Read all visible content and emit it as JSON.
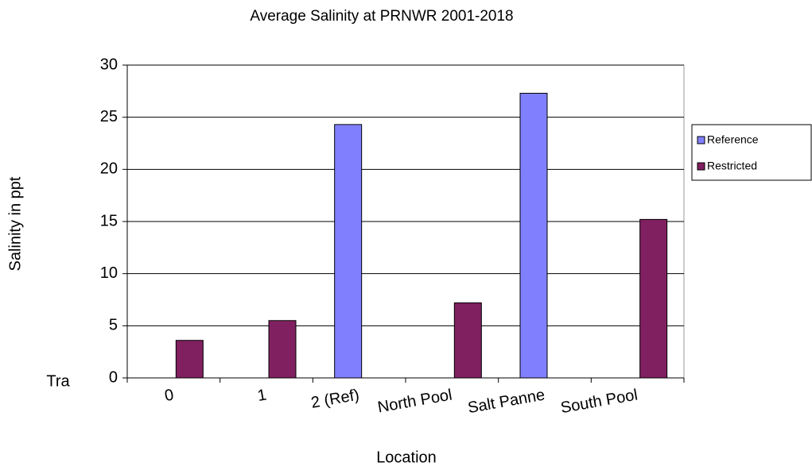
{
  "chart_data": {
    "type": "bar",
    "title": "Average Salinity at PRNWR 2001-2018",
    "xlabel": "Location",
    "ylabel": "Salinity in ppt",
    "annotation": "Tra",
    "categories": [
      "0",
      "1",
      "2 (Ref)",
      "North Pool",
      "Salt Panne",
      "South Pool"
    ],
    "series": [
      {
        "name": "Reference",
        "color": "#8080ff",
        "values": [
          null,
          null,
          24.3,
          null,
          27.3,
          null
        ]
      },
      {
        "name": "Restricted",
        "color": "#802060",
        "values": [
          3.6,
          5.5,
          null,
          7.2,
          null,
          15.2
        ]
      }
    ],
    "ylim": [
      0,
      30
    ],
    "yticks": [
      0,
      5,
      10,
      15,
      20,
      25,
      30
    ],
    "grid": true,
    "legend": "right"
  }
}
